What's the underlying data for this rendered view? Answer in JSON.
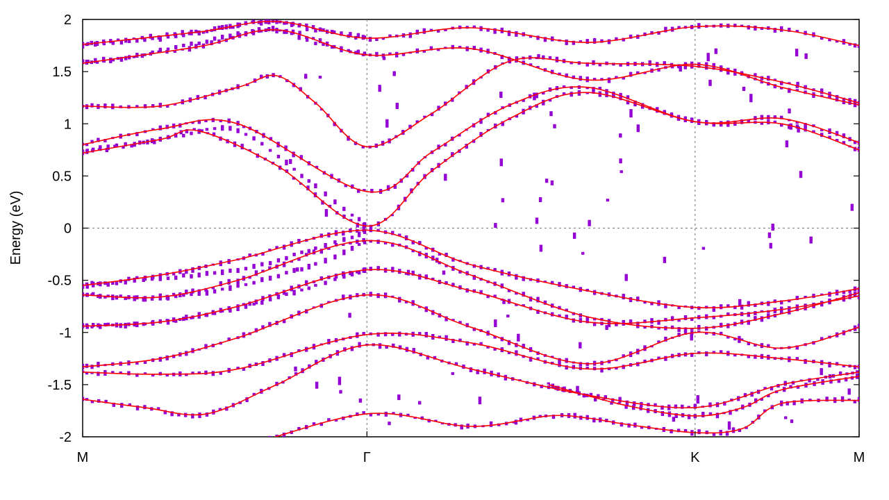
{
  "chart_data": {
    "type": "line",
    "title": "",
    "xlabel": "",
    "ylabel": "Energy (eV)",
    "ylim": [
      -2,
      2
    ],
    "y_ticks": [
      "-2",
      "-1.5",
      "-1",
      "-0.5",
      "0",
      "0.5",
      "1",
      "1.5",
      "2"
    ],
    "y_tick_values": [
      -2,
      -1.5,
      -1,
      -0.5,
      0,
      0.5,
      1,
      1.5,
      2
    ],
    "k_path_labels": [
      "M",
      "Γ",
      "K",
      "M"
    ],
    "k_path_values": [
      0,
      0.3661,
      0.7887,
      1
    ],
    "xlim": [
      0,
      1
    ],
    "grid": "dashed lines at Γ, K and E = 0",
    "legend": "none",
    "colors": {
      "reference_bands": "#ff0000",
      "unfolded_points": "#9400d3"
    },
    "reference_bands": [
      {
        "x": [
          0,
          0.15,
          0.25,
          0.3661,
          0.5,
          0.65,
          0.7887,
          0.9,
          1
        ],
        "y": [
          1.76,
          1.88,
          1.98,
          1.82,
          1.92,
          1.78,
          1.93,
          1.9,
          1.75
        ]
      },
      {
        "x": [
          0,
          0.15,
          0.25,
          0.3661,
          0.5,
          0.65,
          0.7887,
          0.9,
          1
        ],
        "y": [
          1.58,
          1.74,
          1.9,
          1.66,
          1.72,
          1.42,
          1.57,
          1.35,
          1.18
        ]
      },
      {
        "x": [
          0,
          0.1,
          0.2,
          0.25,
          0.3,
          0.3661,
          0.45,
          0.55,
          0.65,
          0.7887,
          0.9,
          1
        ],
        "y": [
          1.17,
          1.17,
          1.35,
          1.46,
          1.2,
          0.78,
          1.1,
          1.6,
          1.58,
          1.55,
          1.4,
          1.2
        ]
      },
      {
        "x": [
          0,
          0.1,
          0.2,
          0.3661,
          0.45,
          0.55,
          0.65,
          0.7887,
          0.9,
          1
        ],
        "y": [
          0.8,
          0.95,
          1.0,
          0.35,
          0.73,
          1.18,
          1.35,
          1.02,
          1.05,
          0.82
        ]
      },
      {
        "x": [
          0,
          0.1,
          0.15,
          0.25,
          0.3661,
          0.45,
          0.55,
          0.65,
          0.7887,
          0.9,
          1
        ],
        "y": [
          0.72,
          0.85,
          0.93,
          0.6,
          0.02,
          0.55,
          1.05,
          1.3,
          1.02,
          1.0,
          0.75
        ]
      },
      {
        "x": [
          0,
          0.1,
          0.2,
          0.3661,
          0.5,
          0.65,
          0.7887,
          0.9,
          1
        ],
        "y": [
          -0.55,
          -0.45,
          -0.3,
          -0.02,
          -0.35,
          -0.6,
          -0.76,
          -0.7,
          -0.58
        ]
      },
      {
        "x": [
          0,
          0.1,
          0.2,
          0.3661,
          0.5,
          0.65,
          0.7887,
          0.9,
          1
        ],
        "y": [
          -0.64,
          -0.66,
          -0.5,
          -0.12,
          -0.45,
          -0.85,
          -0.96,
          -0.82,
          -0.62
        ]
      },
      {
        "x": [
          0,
          0.1,
          0.2,
          0.3661,
          0.5,
          0.65,
          0.7887,
          0.9,
          1
        ],
        "y": [
          -0.94,
          -0.9,
          -0.75,
          -0.4,
          -0.6,
          -0.9,
          -0.86,
          -0.78,
          -0.65
        ]
      },
      {
        "x": [
          0,
          0.1,
          0.2,
          0.3661,
          0.5,
          0.65,
          0.7887,
          0.9,
          1
        ],
        "y": [
          -1.33,
          -1.25,
          -1.05,
          -0.64,
          -0.95,
          -1.3,
          -1.0,
          -1.15,
          -0.95
        ]
      },
      {
        "x": [
          0,
          0.1,
          0.2,
          0.3661,
          0.5,
          0.65,
          0.7887,
          0.9,
          1
        ],
        "y": [
          -1.38,
          -1.4,
          -1.35,
          -1.02,
          -1.1,
          -1.35,
          -1.2,
          -1.25,
          -1.33
        ]
      },
      {
        "x": [
          0,
          0.08,
          0.16,
          0.25,
          0.3661,
          0.5,
          0.65,
          0.7887,
          0.9,
          1
        ],
        "y": [
          -1.64,
          -1.72,
          -1.78,
          -1.5,
          -1.12,
          -1.35,
          -1.6,
          -1.72,
          -1.5,
          -1.38
        ]
      },
      {
        "x": [
          0,
          0.1,
          0.2,
          0.3661,
          0.5,
          0.6,
          0.65,
          0.7,
          0.7887,
          0.85,
          0.9,
          1
        ],
        "y": [
          -2.2,
          -2.2,
          -2.1,
          -1.78,
          -1.9,
          -1.8,
          -1.82,
          -1.88,
          -1.96,
          -1.92,
          -1.68,
          -1.65
        ]
      },
      {
        "x": [
          0.6,
          0.7,
          0.7887,
          0.85,
          0.9,
          1
        ],
        "y": [
          -1.5,
          -1.7,
          -1.8,
          -1.72,
          -1.55,
          -1.42
        ]
      }
    ],
    "unfolded_weight_clusters": [
      {
        "x": [
          0,
          0.05,
          0.1,
          0.15,
          0.2,
          0.25,
          0.3,
          0.3661
        ],
        "y": [
          1.76,
          1.78,
          1.82,
          1.88,
          1.95,
          1.98,
          1.9,
          1.83
        ]
      },
      {
        "x": [
          0,
          0.05,
          0.1,
          0.15,
          0.2,
          0.25,
          0.3,
          0.3661
        ],
        "y": [
          1.6,
          1.62,
          1.7,
          1.78,
          1.85,
          1.9,
          1.78,
          1.66
        ]
      },
      {
        "x": [
          0,
          0.1,
          0.2,
          0.3,
          0.3661
        ],
        "y": [
          0.73,
          0.85,
          0.93,
          0.4,
          0.02
        ]
      },
      {
        "x": [
          0,
          0.1,
          0.2,
          0.3,
          0.3661
        ],
        "y": [
          -0.56,
          -0.48,
          -0.4,
          -0.2,
          -0.03
        ]
      },
      {
        "x": [
          0,
          0.1,
          0.2,
          0.3,
          0.3661
        ],
        "y": [
          -0.63,
          -0.67,
          -0.55,
          -0.35,
          -0.12
        ]
      },
      {
        "x": [
          0,
          0.1,
          0.2,
          0.3,
          0.3661
        ],
        "y": [
          -0.94,
          -0.9,
          -0.77,
          -0.55,
          -0.4
        ]
      }
    ]
  }
}
